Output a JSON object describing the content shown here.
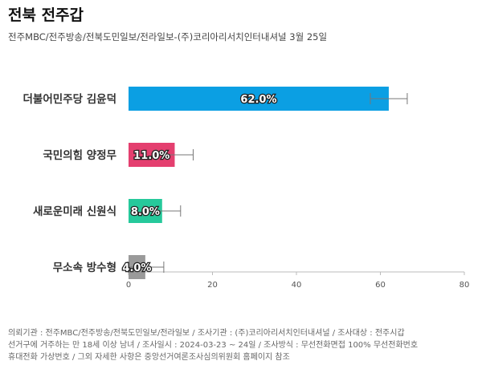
{
  "title": "전북 전주갑",
  "subtitle": "전주MBC/전주방송/전북도민일보/전라일보-(주)코리아리서치인터내셔널 3월 25일",
  "footnote": [
    "의뢰기관 : 전주MBC/전주방송/전북도민일보/전라일보 / 조사기관 : (주)코리아리서치인터내셔널 / 조사대상 : 전주시갑",
    "선거구에 거주하는 만 18세 이상 남녀 / 조사일시 : 2024-03-23 ~ 24일 / 조사방식 : 무선전화면접 100% 무선전화번호",
    "휴대전화 가상번호 / 그외 자세한 사항은 중앙선거여론조사심의위원회 홈페이지 참조"
  ],
  "chart_data": {
    "type": "bar",
    "orientation": "horizontal",
    "categories": [
      "더불어민주당 김윤덕",
      "국민의힘 양정무",
      "새로운미래 신원식",
      "무소속 방수형"
    ],
    "values": [
      62.0,
      11.0,
      8.0,
      4.0
    ],
    "value_labels": [
      "62.0%",
      "11.0%",
      "8.0%",
      "4.0%"
    ],
    "error": [
      4.4,
      4.4,
      4.4,
      4.4
    ],
    "colors": [
      "#0b9fe3",
      "#e43f6f",
      "#26c99b",
      "#9a9a9a"
    ],
    "xlim": [
      0,
      80
    ],
    "xticks": [
      0,
      20,
      40,
      60,
      80
    ],
    "grid": false,
    "legend": "none"
  }
}
